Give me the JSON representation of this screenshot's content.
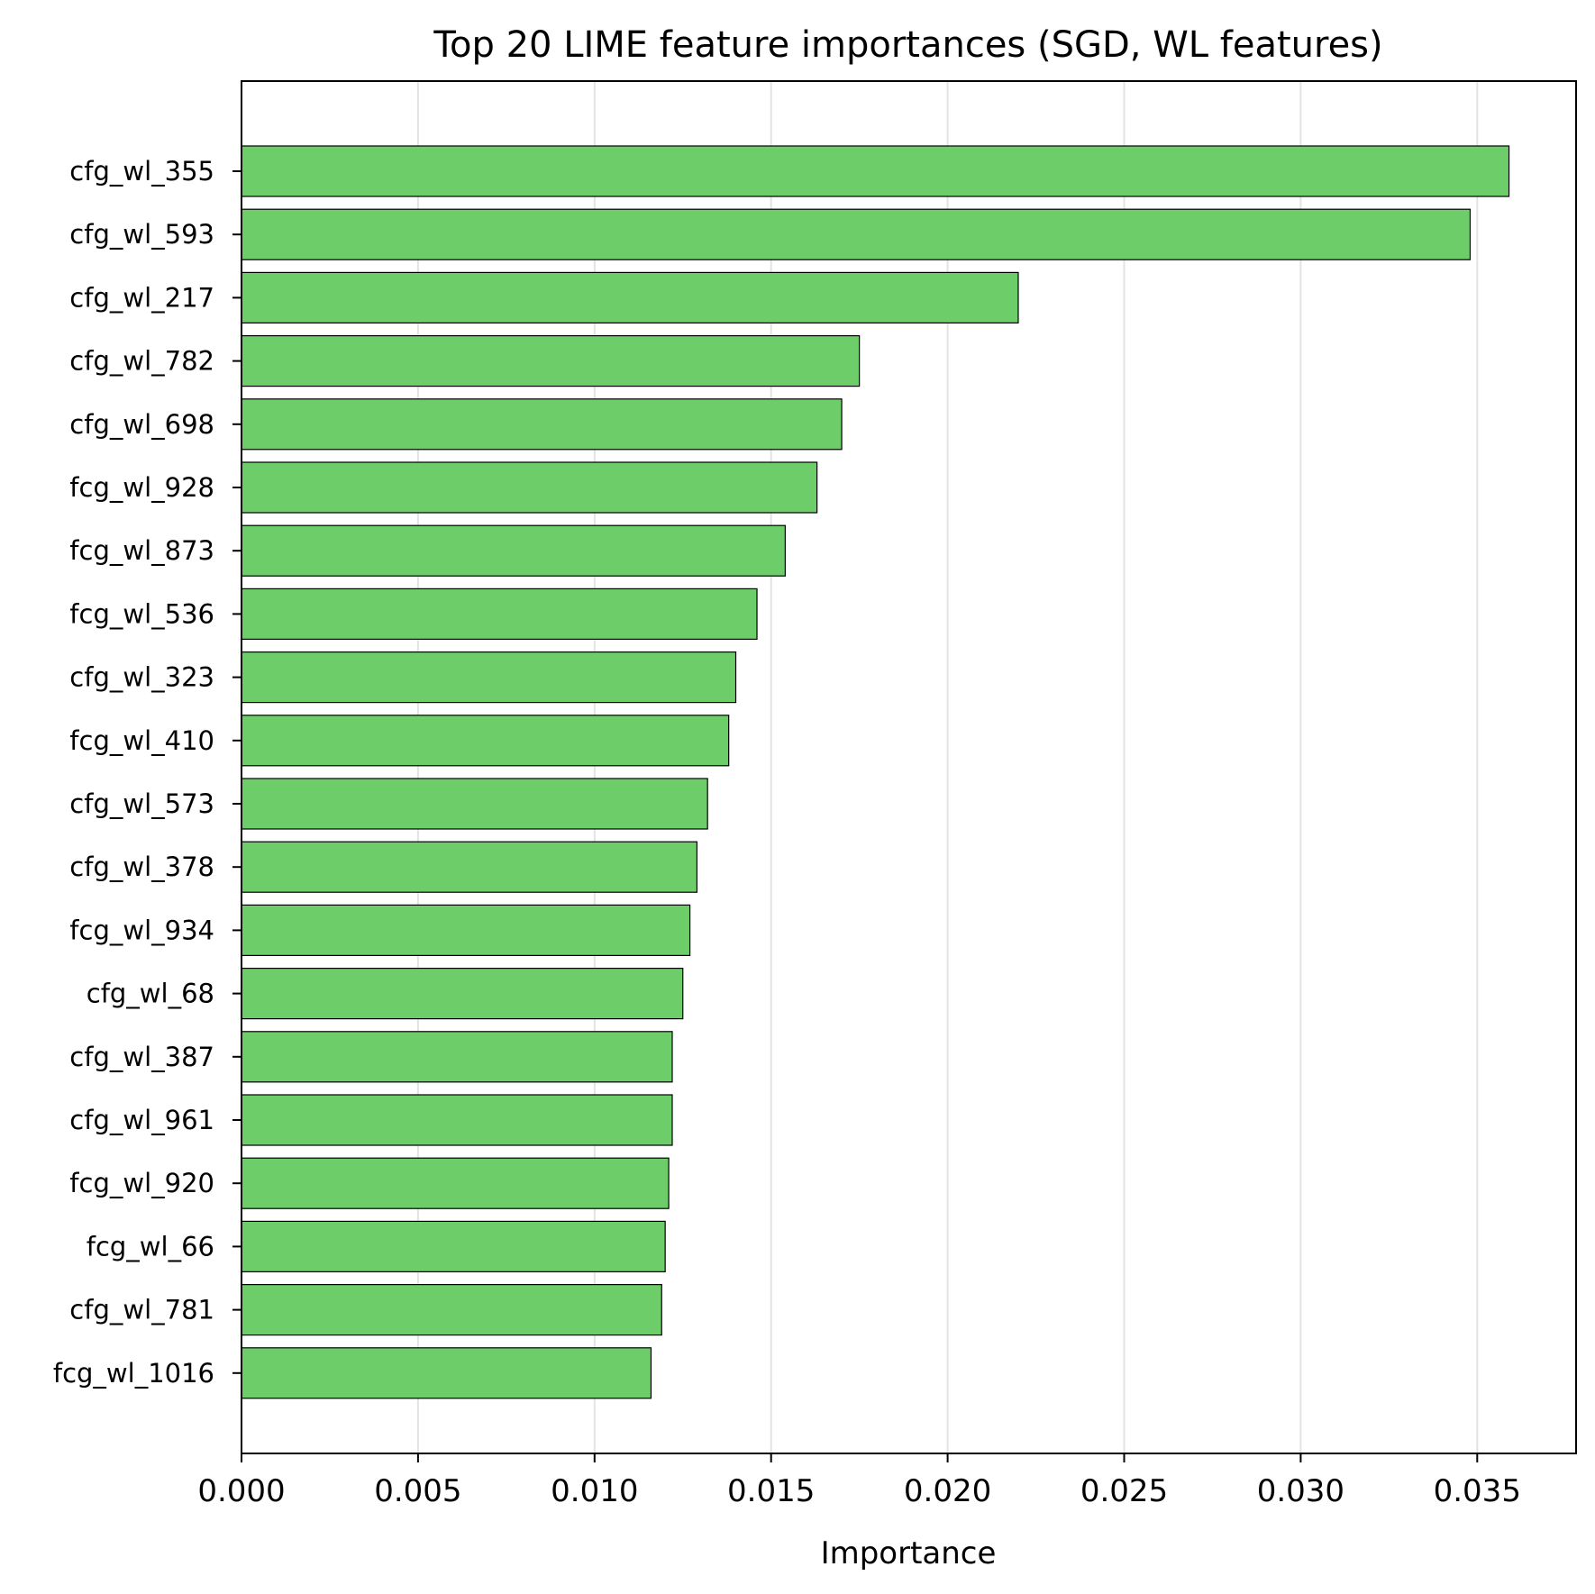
{
  "chart_data": {
    "type": "bar",
    "orientation": "horizontal",
    "title": "Top 20 LIME feature importances (SGD, WL features)",
    "xlabel": "Importance",
    "ylabel": "",
    "xlim": [
      0,
      0.0378
    ],
    "xticks": [
      "0.000",
      "0.005",
      "0.010",
      "0.015",
      "0.020",
      "0.025",
      "0.030",
      "0.035"
    ],
    "grid": "vertical",
    "bar_color": "#6ccd69",
    "edge_color": "#000000",
    "categories": [
      "cfg_wl_355",
      "cfg_wl_593",
      "cfg_wl_217",
      "cfg_wl_782",
      "cfg_wl_698",
      "fcg_wl_928",
      "fcg_wl_873",
      "fcg_wl_536",
      "cfg_wl_323",
      "fcg_wl_410",
      "cfg_wl_573",
      "cfg_wl_378",
      "fcg_wl_934",
      "cfg_wl_68",
      "cfg_wl_387",
      "cfg_wl_961",
      "fcg_wl_920",
      "fcg_wl_66",
      "cfg_wl_781",
      "fcg_wl_1016"
    ],
    "values": [
      0.0359,
      0.0348,
      0.022,
      0.0175,
      0.017,
      0.0163,
      0.0154,
      0.0146,
      0.014,
      0.0138,
      0.0132,
      0.0129,
      0.0127,
      0.0125,
      0.0122,
      0.0122,
      0.0121,
      0.012,
      0.0119,
      0.0116
    ]
  }
}
